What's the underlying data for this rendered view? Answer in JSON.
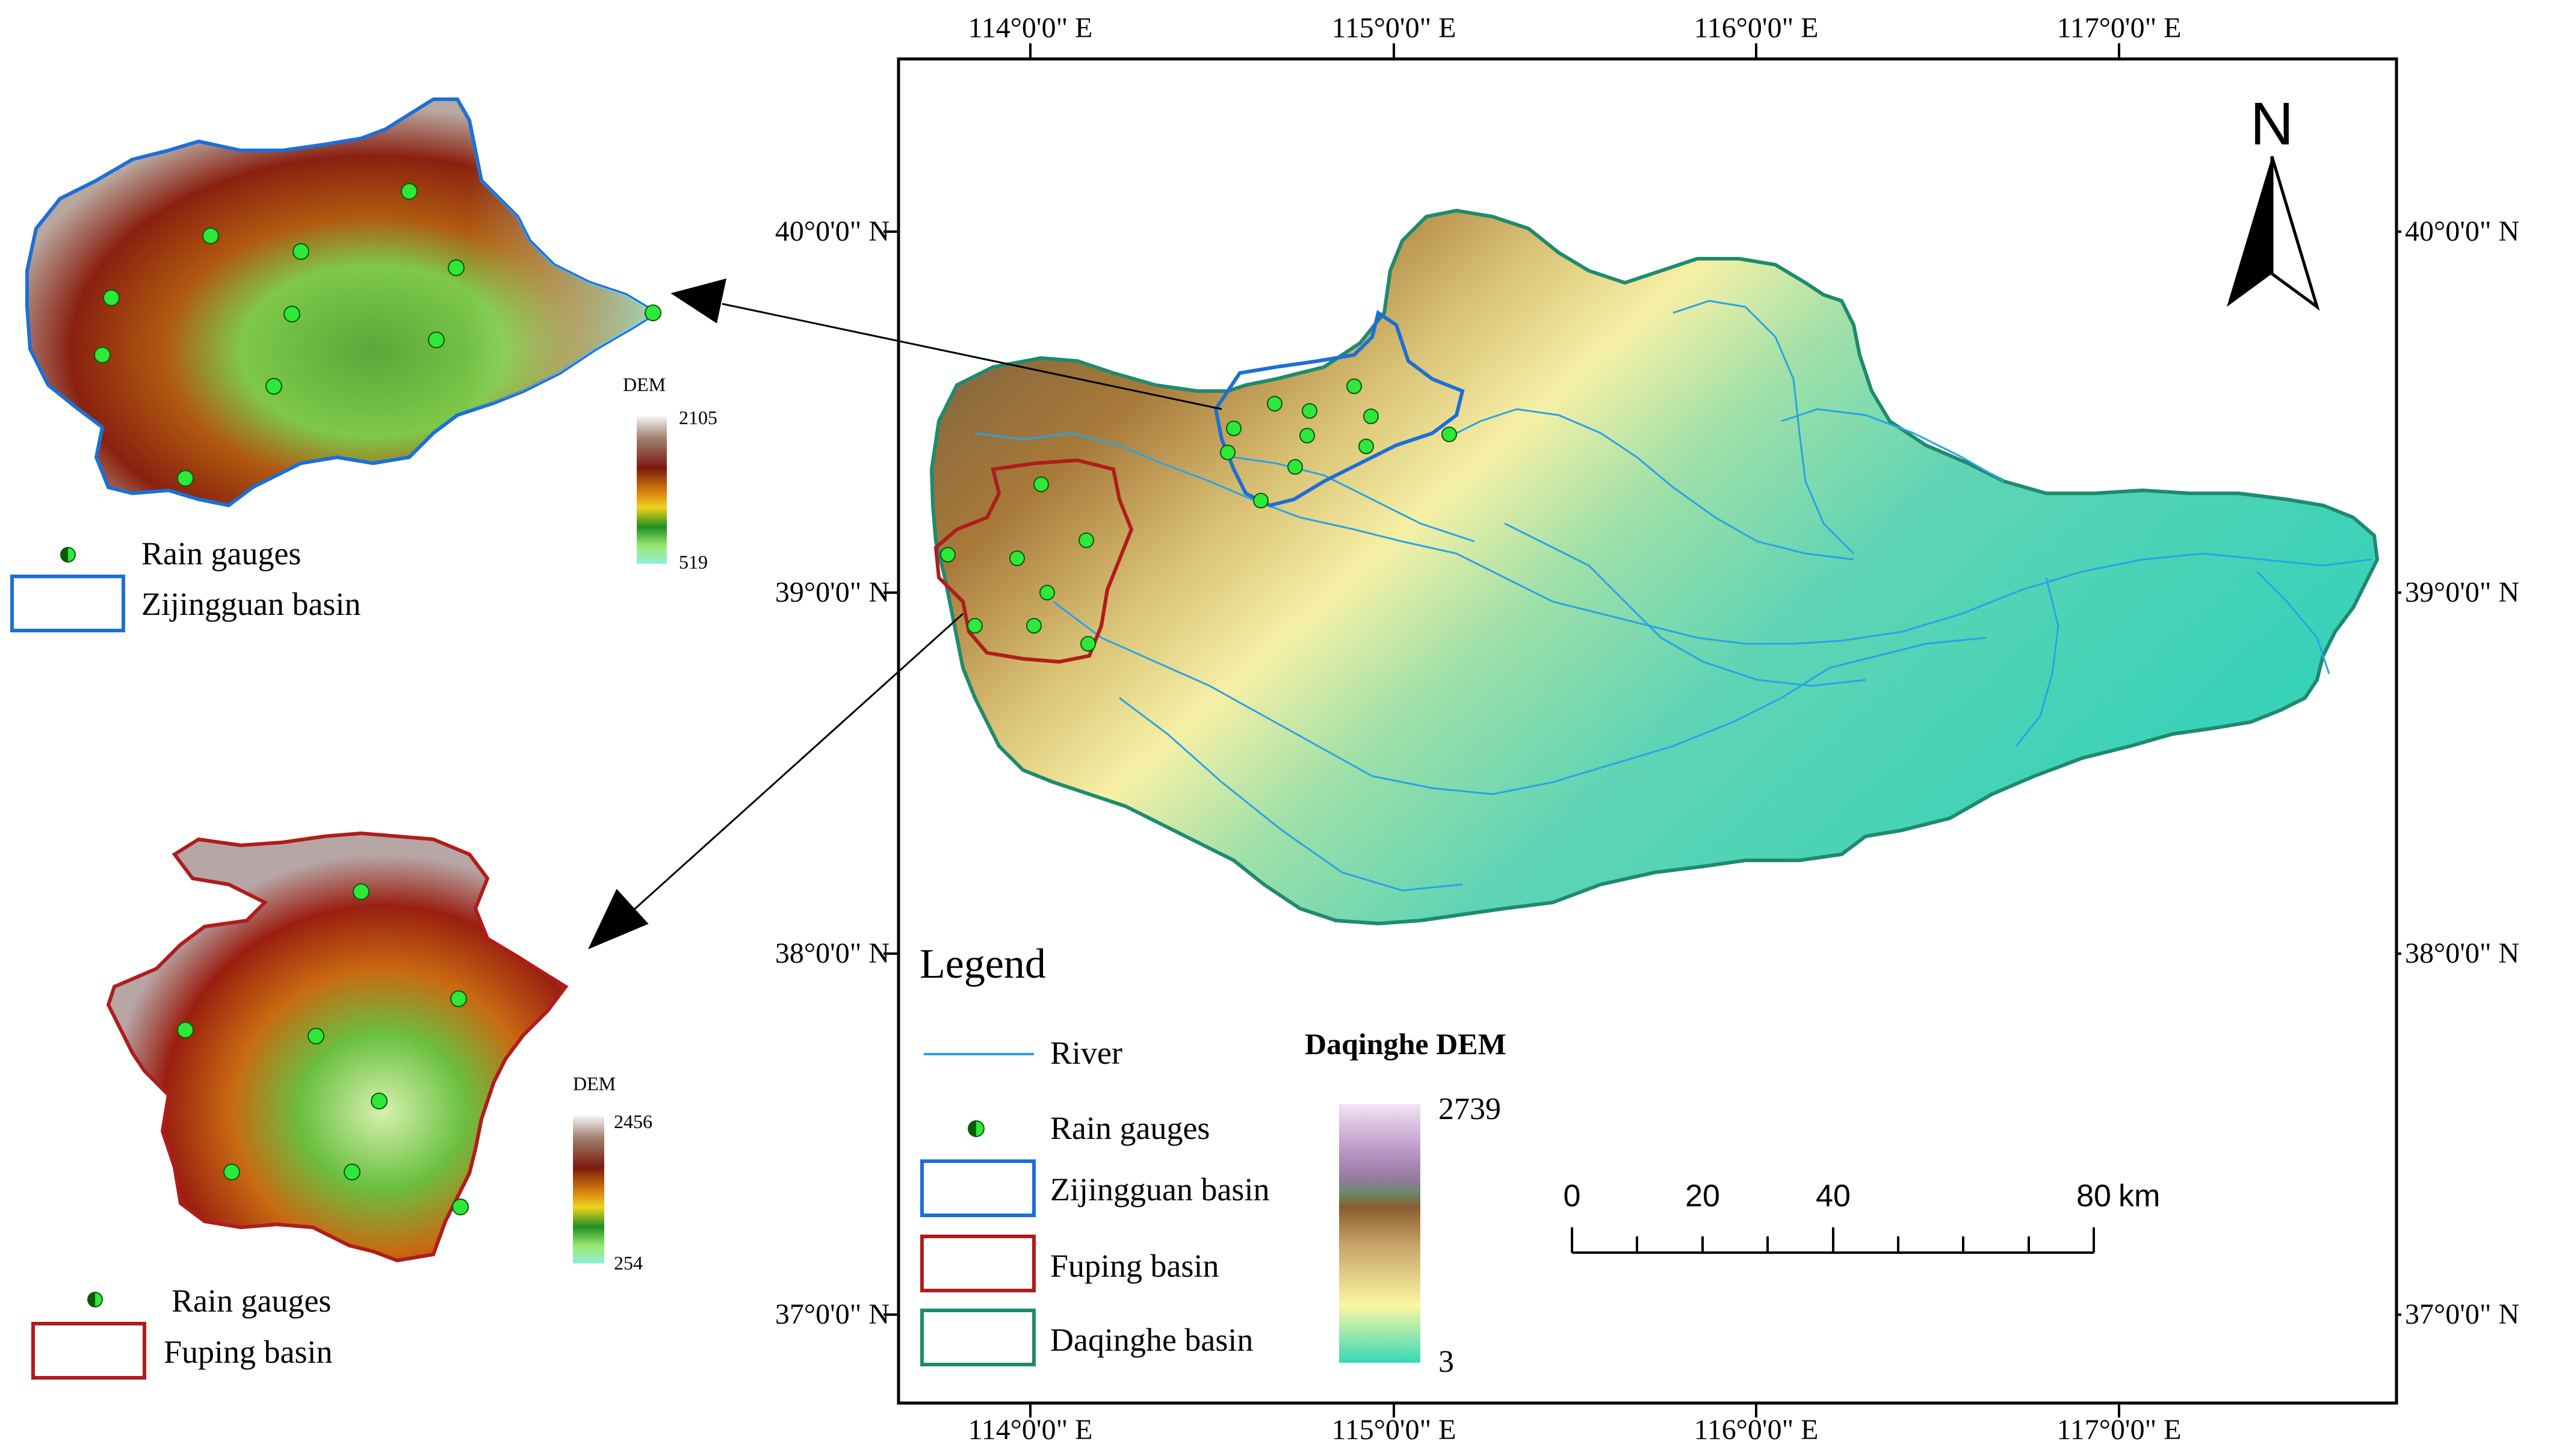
{
  "map": {
    "top_longitude_labels": [
      "114°0'0\" E",
      "115°0'0\" E",
      "116°0'0\" E",
      "117°0'0\" E"
    ],
    "bottom_longitude_labels": [
      "114°0'0\" E",
      "115°0'0\" E",
      "116°0'0\" E",
      "117°0'0\" E"
    ],
    "left_latitude_labels": [
      "40°0'0\" N",
      "39°0'0\" N",
      "38°0'0\" N",
      "37°0'0\" N"
    ],
    "right_latitude_labels": [
      "40°0'0\" N",
      "39°0'0\" N",
      "38°0'0\" N",
      "37°0'0\" N"
    ],
    "north_arrow_label": "N",
    "scale_bar": {
      "ticks": [
        "0",
        "20",
        "40",
        "80"
      ],
      "unit": "km"
    }
  },
  "legend": {
    "title": "Legend",
    "items": [
      {
        "label": "River",
        "symbol": "line",
        "color": "#29a3e6"
      },
      {
        "label": "Rain gauges",
        "symbol": "gauge",
        "color": "#2ee83a"
      },
      {
        "label": "Zijingguan basin",
        "symbol": "box",
        "color": "#1c6fd6"
      },
      {
        "label": "Fuping basin",
        "symbol": "box",
        "color": "#b01c1c"
      },
      {
        "label": "Daqinghe basin",
        "symbol": "box",
        "color": "#1f8a6e"
      }
    ],
    "dem": {
      "title": "Daqinghe DEM",
      "max": "2739",
      "min": "3"
    }
  },
  "inset_zijingguan": {
    "dem_title": "DEM",
    "dem_max": "2105",
    "dem_min": "519",
    "legend_items": [
      "Rain gauges",
      "Zijingguan basin"
    ]
  },
  "inset_fuping": {
    "dem_title": "DEM",
    "dem_max": "2456",
    "dem_min": "254",
    "legend_items": [
      "Rain gauges",
      "Fuping basin"
    ]
  },
  "colors": {
    "zijingguan_outline": "#1c6fd6",
    "fuping_outline": "#b01c1c",
    "daqinghe_outline": "#1f8a6e",
    "river": "#29a3e6",
    "gauge": "#2ee83a"
  }
}
